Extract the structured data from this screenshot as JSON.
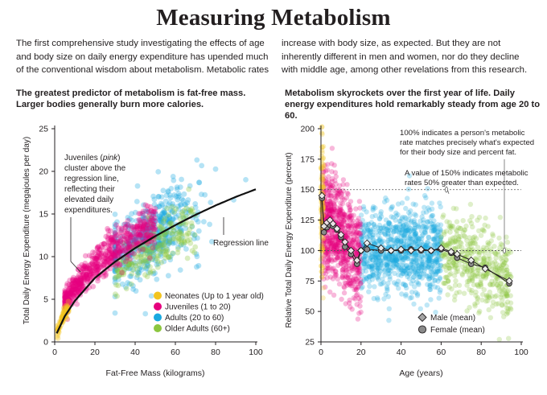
{
  "title": "Measuring Metabolism",
  "intro_left": "The first comprehensive study investigating the effects of age and body size on daily energy expenditure has upended much of the conventional wisdom about metabolism. Metabolic rates",
  "intro_right": "increase with body size, as expected. But they are not inherently different in men and women, nor do they decline with middle age, among other revelations from this research.",
  "subhead_left": "The greatest predictor of metabolism is fat-free mass. Larger bodies generally burn more calories.",
  "subhead_right": "Metabolism skyrockets over the first year of life. Daily energy expenditures hold remarkably steady from age 20 to 60.",
  "colors": {
    "neonates": "#f2c41f",
    "juveniles": "#e6007e",
    "adults": "#1aa9e0",
    "older": "#8cc63f",
    "line": "#111111"
  },
  "chart_data": [
    {
      "type": "scatter",
      "title": "The greatest predictor of metabolism is fat-free mass.",
      "xlabel": "Fat-Free Mass (kilograms)",
      "ylabel": "Total Daily Energy Expenditure (megajoules per day)",
      "xlim": [
        0,
        100
      ],
      "ylim": [
        0,
        25
      ],
      "xticks": [
        "0",
        "20",
        "40",
        "60",
        "80",
        "100"
      ],
      "yticks": [
        "0",
        "5",
        "10",
        "15",
        "20",
        "25"
      ],
      "regression_label": "Regression line",
      "regression_line": {
        "x": [
          1,
          5,
          10,
          20,
          30,
          40,
          50,
          60,
          70,
          80,
          90,
          100
        ],
        "y": [
          1.0,
          3.0,
          4.8,
          7.5,
          9.4,
          11.0,
          12.4,
          13.7,
          14.9,
          16.0,
          17.0,
          17.9
        ]
      },
      "annotation": {
        "lines": [
          "Juveniles (pink)",
          "cluster above the",
          "regression line,",
          "reflecting their",
          "elevated daily",
          "expenditures."
        ]
      },
      "legend": [
        {
          "name": "Neonates (Up to 1 year old)",
          "color": "#f2c41f"
        },
        {
          "name": "Juveniles (1 to 20)",
          "color": "#e6007e"
        },
        {
          "name": "Adults (20 to 60)",
          "color": "#1aa9e0"
        },
        {
          "name": "Older Adults (60+)",
          "color": "#8cc63f"
        }
      ],
      "series": [
        {
          "name": "Neonates",
          "x_range": [
            1,
            7
          ],
          "y_model": "regression+0.3",
          "spread": 0.8
        },
        {
          "name": "Juveniles",
          "x_range": [
            5,
            50
          ],
          "y_model": "regression+1.6",
          "spread": 1.6
        },
        {
          "name": "Adults",
          "x_range": [
            30,
            95
          ],
          "y_model": "regression+0.3",
          "spread": 2.5
        },
        {
          "name": "Older Adults",
          "x_range": [
            30,
            70
          ],
          "y_model": "regression-1.2",
          "spread": 1.6
        }
      ]
    },
    {
      "type": "scatter",
      "title": "Metabolism skyrockets over the first year of life.",
      "xlabel": "Age (years)",
      "ylabel": "Relative Total Daily Energy Expenditure (percent)",
      "xlim": [
        0,
        100
      ],
      "ylim": [
        25,
        200
      ],
      "xticks": [
        "0",
        "20",
        "40",
        "60",
        "80",
        "100"
      ],
      "yticks": [
        "25",
        "50",
        "75",
        "100",
        "125",
        "150",
        "175",
        "200"
      ],
      "reference_lines": [
        100,
        150
      ],
      "annotation_1": [
        "100% indicates a person's metabolic",
        "rate matches precisely what's expected",
        "for their body size and percent fat."
      ],
      "annotation_2": [
        "A value of 150% indicates metabolic",
        "rates 50% greater than expected."
      ],
      "legend": [
        {
          "name": "Male (mean)",
          "marker": "diamond"
        },
        {
          "name": "Female (mean)",
          "marker": "circle"
        }
      ],
      "male_mean": {
        "x": [
          0.5,
          1.5,
          3,
          4.5,
          6,
          8,
          10,
          12,
          15,
          18,
          20,
          23,
          30,
          35,
          40,
          45,
          50,
          55,
          60,
          65,
          68,
          75,
          82,
          94
        ],
        "y": [
          145,
          120,
          123,
          125,
          122,
          118,
          113,
          107,
          100,
          92,
          100,
          106,
          102,
          100,
          101,
          100,
          101,
          100,
          102,
          99,
          97,
          92,
          85,
          75
        ]
      },
      "female_mean": {
        "x": [
          0.5,
          1.5,
          3,
          4.5,
          6,
          8,
          10,
          12,
          15,
          18,
          20,
          23,
          30,
          35,
          40,
          45,
          50,
          55,
          60,
          65,
          68,
          75,
          82,
          94
        ],
        "y": [
          143,
          115,
          119,
          121,
          120,
          117,
          111,
          103,
          97,
          89,
          100,
          101,
          100,
          100,
          100,
          101,
          100,
          100,
          101,
          98,
          94,
          89,
          86,
          73
        ]
      },
      "series": [
        {
          "name": "Neonates",
          "x_range": [
            0,
            1.3
          ],
          "center": 135,
          "spread": 30
        },
        {
          "name": "Juveniles",
          "x_range": [
            1,
            20
          ],
          "center": "mean",
          "spread": 22
        },
        {
          "name": "Adults",
          "x_range": [
            20,
            60
          ],
          "center": 100,
          "spread": 18
        },
        {
          "name": "Older Adults",
          "x_range": [
            60,
            95
          ],
          "center": "mean",
          "spread": 17
        }
      ]
    }
  ]
}
